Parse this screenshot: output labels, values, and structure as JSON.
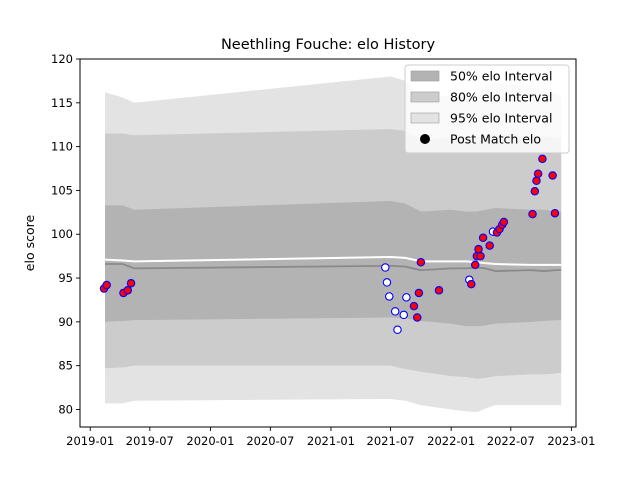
{
  "chart_data": {
    "type": "area",
    "title": "Neethling Fouche: elo History",
    "xlabel": "",
    "ylabel": "elo score",
    "xlim": [
      "2018-12-01",
      "2023-01-15"
    ],
    "ylim": [
      78,
      120
    ],
    "x_ticks": [
      "2019-01",
      "2019-07",
      "2020-01",
      "2020-07",
      "2021-01",
      "2021-07",
      "2022-01",
      "2022-07",
      "2023-01"
    ],
    "y_ticks": [
      80,
      85,
      90,
      95,
      100,
      105,
      110,
      115,
      120
    ],
    "grid": false,
    "legend_position": "top-right",
    "legend": [
      {
        "label": "50% elo Interval",
        "color": "#b3b3b3"
      },
      {
        "label": "80% elo Interval",
        "color": "#cccccc"
      },
      {
        "label": "95% elo Interval",
        "color": "#e3e3e3"
      },
      {
        "label": "Post Match elo",
        "color": "#000000"
      }
    ],
    "colors": {
      "band_50": "#b3b3b3",
      "band_80": "#cccccc",
      "band_95": "#e3e3e3",
      "mean_line": "#ffffff",
      "median_line": "#8a8a8a",
      "marker_edge": "#0000ff",
      "marker_win": "#ff0000",
      "marker_loss": "#ffffff"
    },
    "bands": {
      "x": [
        "2019-02-15",
        "2019-04-10",
        "2019-05-15",
        "2021-07-01",
        "2021-08-15",
        "2021-10-01",
        "2022-01-01",
        "2022-02-15",
        "2022-03-20",
        "2022-04-15",
        "2022-05-15",
        "2022-09-01",
        "2022-10-10",
        "2022-11-15",
        "2022-12-01"
      ],
      "p95_high": [
        116.2,
        115.6,
        115.0,
        118.0,
        117.5,
        115.5,
        115.8,
        115.6,
        116.0,
        116.8,
        117.3,
        116.8,
        116.3,
        116.0,
        115.6
      ],
      "p80_high": [
        111.5,
        111.5,
        111.3,
        112.0,
        111.8,
        110.8,
        111.0,
        110.8,
        111.0,
        111.2,
        111.4,
        111.2,
        111.2,
        111.0,
        111.0
      ],
      "p50_high": [
        103.3,
        103.3,
        102.8,
        103.8,
        103.5,
        102.6,
        102.8,
        102.6,
        102.6,
        102.8,
        103.0,
        102.8,
        102.8,
        102.6,
        102.6
      ],
      "mean": [
        97.1,
        97.0,
        96.9,
        97.4,
        97.3,
        96.9,
        96.9,
        96.9,
        96.8,
        96.7,
        96.6,
        96.5,
        96.5,
        96.5,
        96.5
      ],
      "median": [
        96.6,
        96.6,
        96.1,
        96.4,
        96.3,
        95.9,
        96.1,
        96.1,
        96.2,
        96.1,
        95.8,
        95.9,
        95.8,
        95.9,
        95.9
      ],
      "p50_low": [
        90.0,
        90.1,
        90.2,
        90.5,
        90.4,
        90.1,
        89.8,
        89.5,
        89.5,
        89.6,
        89.8,
        90.0,
        90.1,
        90.2,
        90.2
      ],
      "p80_low": [
        84.7,
        84.8,
        85.0,
        85.0,
        84.6,
        84.3,
        83.8,
        83.7,
        83.5,
        83.6,
        83.8,
        84.0,
        84.0,
        84.1,
        84.2
      ],
      "p95_low": [
        80.7,
        80.7,
        81.0,
        81.2,
        81.0,
        80.5,
        80.0,
        79.8,
        79.7,
        80.1,
        80.5,
        80.5,
        80.5,
        80.5,
        80.5
      ]
    },
    "series": [
      {
        "name": "Post Match elo",
        "points": [
          {
            "x": "2019-02-12",
            "y": 93.8,
            "win": true
          },
          {
            "x": "2019-02-20",
            "y": 94.2,
            "win": true
          },
          {
            "x": "2019-04-12",
            "y": 93.3,
            "win": true
          },
          {
            "x": "2019-04-25",
            "y": 93.6,
            "win": true
          },
          {
            "x": "2019-05-05",
            "y": 94.4,
            "win": true
          },
          {
            "x": "2021-06-15",
            "y": 96.2,
            "win": false
          },
          {
            "x": "2021-06-20",
            "y": 94.5,
            "win": false
          },
          {
            "x": "2021-06-27",
            "y": 92.9,
            "win": false
          },
          {
            "x": "2021-07-15",
            "y": 91.2,
            "win": false
          },
          {
            "x": "2021-07-22",
            "y": 89.1,
            "win": false
          },
          {
            "x": "2021-08-10",
            "y": 90.8,
            "win": false
          },
          {
            "x": "2021-08-18",
            "y": 92.8,
            "win": false
          },
          {
            "x": "2021-09-10",
            "y": 91.8,
            "win": true
          },
          {
            "x": "2021-09-20",
            "y": 90.5,
            "win": true
          },
          {
            "x": "2021-09-25",
            "y": 93.3,
            "win": true
          },
          {
            "x": "2021-10-01",
            "y": 96.8,
            "win": true
          },
          {
            "x": "2021-11-25",
            "y": 93.6,
            "win": true
          },
          {
            "x": "2022-02-25",
            "y": 94.8,
            "win": false
          },
          {
            "x": "2022-03-03",
            "y": 94.3,
            "win": true
          },
          {
            "x": "2022-03-15",
            "y": 96.5,
            "win": true
          },
          {
            "x": "2022-03-20",
            "y": 97.5,
            "win": true
          },
          {
            "x": "2022-03-25",
            "y": 98.3,
            "win": true
          },
          {
            "x": "2022-03-31",
            "y": 97.5,
            "win": true
          },
          {
            "x": "2022-04-08",
            "y": 99.6,
            "win": true
          },
          {
            "x": "2022-04-28",
            "y": 98.7,
            "win": true
          },
          {
            "x": "2022-05-08",
            "y": 100.3,
            "win": false
          },
          {
            "x": "2022-05-20",
            "y": 100.2,
            "win": true
          },
          {
            "x": "2022-05-28",
            "y": 100.6,
            "win": true
          },
          {
            "x": "2022-06-05",
            "y": 101.1,
            "win": true
          },
          {
            "x": "2022-06-10",
            "y": 101.4,
            "win": true
          },
          {
            "x": "2022-09-05",
            "y": 102.3,
            "win": true
          },
          {
            "x": "2022-09-12",
            "y": 104.9,
            "win": true
          },
          {
            "x": "2022-09-17",
            "y": 106.1,
            "win": true
          },
          {
            "x": "2022-09-22",
            "y": 106.9,
            "win": true
          },
          {
            "x": "2022-10-05",
            "y": 108.6,
            "win": true
          },
          {
            "x": "2022-11-05",
            "y": 106.7,
            "win": true
          },
          {
            "x": "2022-11-12",
            "y": 102.4,
            "win": true
          }
        ]
      }
    ]
  }
}
